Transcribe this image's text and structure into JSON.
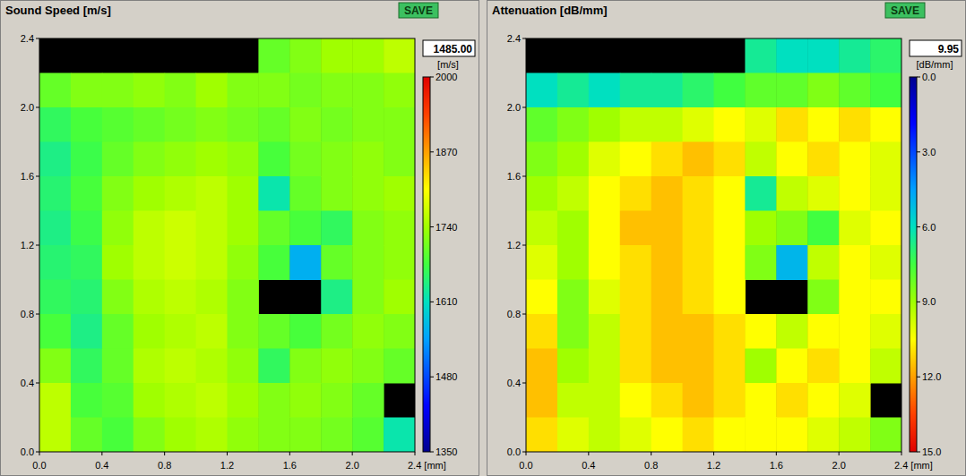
{
  "chart_data": [
    {
      "type": "heatmap",
      "title": "Sound Speed [m/s]",
      "button": "SAVE",
      "readout": "1485.00",
      "colorbar_label": "[m/s]",
      "xlim": [
        0,
        2.4
      ],
      "ylim": [
        0,
        2.4
      ],
      "xticks": [
        {
          "value": 0,
          "label": "0.0"
        },
        0.4,
        0.8,
        1.2,
        1.6,
        {
          "value": 2.0,
          "label": "2.0"
        },
        {
          "value": 2.4,
          "label": "2.4 [mm]"
        }
      ],
      "yticks": [
        {
          "value": 0,
          "label": "0.0"
        },
        0.4,
        0.8,
        1.2,
        1.6,
        {
          "value": 2.0,
          "label": "2.0"
        },
        2.4
      ],
      "x": [
        0.1,
        0.3,
        0.5,
        0.7,
        0.9,
        1.1,
        1.3,
        1.5,
        1.7,
        1.9,
        2.1,
        2.3
      ],
      "y": [
        2.3,
        2.1,
        1.9,
        1.7,
        1.5,
        1.3,
        1.1,
        0.9,
        0.7,
        0.5,
        0.3,
        0.1
      ],
      "colorbar_range": [
        1350,
        2000
      ],
      "colorbar_ticks": [
        1350,
        1480,
        1610,
        1740,
        1870,
        2000
      ],
      "cells": [
        [
          null,
          null,
          null,
          null,
          null,
          null,
          null,
          1700,
          1720,
          1740,
          1740,
          1760
        ],
        [
          1700,
          1720,
          1720,
          1730,
          1720,
          1740,
          1720,
          1720,
          1710,
          1720,
          1720,
          1730
        ],
        [
          1660,
          1680,
          1690,
          1700,
          1710,
          1720,
          1710,
          1700,
          1720,
          1710,
          1720,
          1720
        ],
        [
          1640,
          1670,
          1700,
          1720,
          1730,
          1740,
          1730,
          1680,
          1710,
          1720,
          1730,
          1720
        ],
        [
          1650,
          1680,
          1720,
          1740,
          1750,
          1760,
          1740,
          1620,
          1700,
          1720,
          1730,
          1740
        ],
        [
          1640,
          1670,
          1730,
          1760,
          1770,
          1760,
          1740,
          1700,
          1680,
          1660,
          1720,
          1730
        ],
        [
          1650,
          1660,
          1740,
          1760,
          1770,
          1760,
          1730,
          1680,
          1560,
          1700,
          1720,
          1730
        ],
        [
          1660,
          1650,
          1720,
          1750,
          1760,
          1750,
          1720,
          null,
          null,
          1640,
          1720,
          1740
        ],
        [
          1680,
          1640,
          1700,
          1740,
          1750,
          1760,
          1720,
          1700,
          1680,
          1710,
          1730,
          1720
        ],
        [
          1720,
          1660,
          1700,
          1750,
          1760,
          1750,
          1730,
          1660,
          1720,
          1730,
          1720,
          1700
        ],
        [
          1760,
          1680,
          1690,
          1740,
          1750,
          1760,
          1740,
          1720,
          1730,
          1720,
          1700,
          null
        ],
        [
          1760,
          1700,
          1680,
          1720,
          1740,
          1750,
          1730,
          1720,
          1720,
          1710,
          1690,
          1620
        ]
      ]
    },
    {
      "type": "heatmap",
      "title": "Attenuation [dB/mm]",
      "button": "SAVE",
      "readout": "9.95",
      "colorbar_label": "[dB/mm]",
      "xlim": [
        0,
        2.4
      ],
      "ylim": [
        0,
        2.4
      ],
      "xticks": [
        {
          "value": 0,
          "label": "0.0"
        },
        0.4,
        0.8,
        1.2,
        1.6,
        {
          "value": 2.0,
          "label": "2.0"
        },
        {
          "value": 2.4,
          "label": "2.4 [mm]"
        }
      ],
      "yticks": [
        {
          "value": 0,
          "label": "0.0"
        },
        0.4,
        0.8,
        1.2,
        1.6,
        {
          "value": 2.0,
          "label": "2.0"
        },
        2.4
      ],
      "x": [
        0.1,
        0.3,
        0.5,
        0.7,
        0.9,
        1.1,
        1.3,
        1.5,
        1.7,
        1.9,
        2.1,
        2.3
      ],
      "y": [
        2.3,
        2.1,
        1.9,
        1.7,
        1.5,
        1.3,
        1.1,
        0.9,
        0.7,
        0.5,
        0.3,
        0.1
      ],
      "colorbar_range": [
        15,
        0
      ],
      "colorbar_ticks": [
        {
          "value": 0,
          "label": "0.0"
        },
        {
          "value": 3,
          "label": "3.0"
        },
        {
          "value": 6,
          "label": "6.0"
        },
        {
          "value": 9,
          "label": "9.0"
        },
        {
          "value": 12,
          "label": "12.0"
        },
        {
          "value": 15,
          "label": "15.0"
        }
      ],
      "cells": [
        [
          null,
          null,
          null,
          null,
          null,
          null,
          null,
          6.5,
          6.0,
          6.0,
          6.5,
          7.0
        ],
        [
          6.0,
          6.5,
          6.0,
          6.5,
          6.5,
          7.0,
          7.5,
          8.0,
          8.0,
          8.5,
          8.0,
          7.5
        ],
        [
          8.0,
          8.5,
          9.0,
          9.5,
          9.5,
          10.0,
          10.5,
          10.0,
          11.0,
          10.5,
          11.0,
          10.5
        ],
        [
          8.5,
          9.0,
          10.0,
          10.5,
          11.0,
          11.5,
          11.0,
          9.5,
          10.5,
          11.0,
          10.5,
          10.0
        ],
        [
          9.0,
          9.5,
          10.5,
          11.0,
          11.5,
          11.0,
          10.5,
          6.5,
          9.5,
          10.0,
          10.5,
          10.0
        ],
        [
          9.5,
          9.0,
          10.5,
          11.5,
          11.5,
          11.0,
          10.5,
          9.0,
          8.5,
          7.5,
          10.0,
          10.5
        ],
        [
          10.0,
          9.0,
          10.5,
          11.0,
          11.5,
          11.0,
          10.5,
          8.5,
          5.0,
          9.5,
          10.5,
          10.0
        ],
        [
          10.5,
          8.5,
          10.0,
          11.0,
          11.5,
          11.0,
          10.5,
          null,
          null,
          8.5,
          10.5,
          10.5
        ],
        [
          11.0,
          8.5,
          9.5,
          11.0,
          11.5,
          11.5,
          11.0,
          10.5,
          9.5,
          10.5,
          10.5,
          10.0
        ],
        [
          11.5,
          9.0,
          9.5,
          11.0,
          11.5,
          11.5,
          11.0,
          9.0,
          10.5,
          11.0,
          10.5,
          9.5
        ],
        [
          11.5,
          9.5,
          9.5,
          10.5,
          11.0,
          11.5,
          11.0,
          10.5,
          11.0,
          10.5,
          10.0,
          null
        ],
        [
          11.0,
          10.0,
          9.5,
          10.0,
          10.5,
          11.0,
          10.5,
          10.5,
          10.5,
          10.0,
          9.5,
          8.5
        ]
      ]
    }
  ]
}
